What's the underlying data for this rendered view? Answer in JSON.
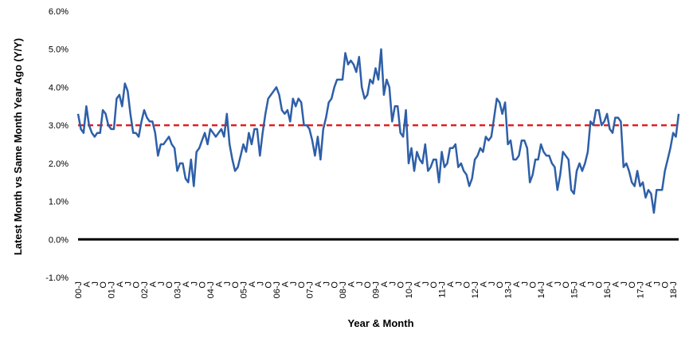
{
  "chart_data": {
    "type": "line",
    "xlabel": "Year & Month",
    "ylabel": "Latest Month vs Same Month Year Ago (Y/Y)",
    "ylim": [
      -1.0,
      6.0
    ],
    "y_ticks": [
      "-1.0%",
      "0.0%",
      "1.0%",
      "2.0%",
      "3.0%",
      "4.0%",
      "5.0%",
      "6.0%"
    ],
    "grid": false,
    "x_start_label": "2000-01",
    "x_end_label": "2018-01",
    "x_tick_labels": [
      "00-J",
      "A",
      "J",
      "O",
      "01-J",
      "A",
      "J",
      "O",
      "02-J",
      "A",
      "J",
      "O",
      "03-J",
      "A",
      "J",
      "O",
      "04-J",
      "A",
      "J",
      "O",
      "05-J",
      "A",
      "J",
      "O",
      "06-J",
      "A",
      "J",
      "O",
      "07-J",
      "A",
      "J",
      "O",
      "08-J",
      "A",
      "J",
      "O",
      "09-J",
      "A",
      "J",
      "O",
      "10-J",
      "A",
      "J",
      "O",
      "11-J",
      "A",
      "J",
      "O",
      "12-J",
      "A",
      "J",
      "O",
      "13-J",
      "A",
      "J",
      "O",
      "14-J",
      "A",
      "J",
      "O",
      "15-J",
      "A",
      "J",
      "O",
      "16-J",
      "A",
      "J",
      "O",
      "17-J",
      "A",
      "J",
      "O",
      "18-J"
    ],
    "reference_lines": [
      {
        "value": 3.0,
        "style": "dashed",
        "color": "#e02020"
      },
      {
        "value": 0.0,
        "style": "solid",
        "color": "#000000"
      }
    ],
    "series": [
      {
        "color": "#2e5fa8",
        "values": [
          3.3,
          2.9,
          2.8,
          3.5,
          3.0,
          2.8,
          2.7,
          2.8,
          2.8,
          3.4,
          3.3,
          3.0,
          2.9,
          2.9,
          3.7,
          3.8,
          3.5,
          4.1,
          3.9,
          3.3,
          2.8,
          2.8,
          2.7,
          3.1,
          3.4,
          3.2,
          3.1,
          3.1,
          2.8,
          2.2,
          2.5,
          2.5,
          2.6,
          2.7,
          2.5,
          2.4,
          1.8,
          2.0,
          2.0,
          1.6,
          1.5,
          2.1,
          1.4,
          2.3,
          2.4,
          2.6,
          2.8,
          2.5,
          2.9,
          2.8,
          2.7,
          2.8,
          2.9,
          2.7,
          3.3,
          2.5,
          2.1,
          1.8,
          1.9,
          2.2,
          2.5,
          2.3,
          2.8,
          2.5,
          2.9,
          2.9,
          2.2,
          2.8,
          3.3,
          3.7,
          3.8,
          3.9,
          4.0,
          3.8,
          3.4,
          3.3,
          3.4,
          3.1,
          3.7,
          3.5,
          3.7,
          3.6,
          3.0,
          3.0,
          2.9,
          2.6,
          2.2,
          2.7,
          2.1,
          2.9,
          3.2,
          3.6,
          3.7,
          4.0,
          4.2,
          4.2,
          4.2,
          4.9,
          4.6,
          4.7,
          4.6,
          4.4,
          4.8,
          4.0,
          3.7,
          3.8,
          4.2,
          4.1,
          4.5,
          4.2,
          5.0,
          3.8,
          4.2,
          4.0,
          3.1,
          3.5,
          3.5,
          2.8,
          2.7,
          3.4,
          2.0,
          2.4,
          1.8,
          2.3,
          2.1,
          2.0,
          2.5,
          1.8,
          1.9,
          2.1,
          2.1,
          1.5,
          2.3,
          1.9,
          2.0,
          2.4,
          2.4,
          2.5,
          1.9,
          2.0,
          1.8,
          1.7,
          1.4,
          1.6,
          2.1,
          2.2,
          2.4,
          2.3,
          2.7,
          2.6,
          2.7,
          3.2,
          3.7,
          3.6,
          3.3,
          3.6,
          2.5,
          2.6,
          2.1,
          2.1,
          2.2,
          2.6,
          2.6,
          2.4,
          1.5,
          1.7,
          2.1,
          2.1,
          2.5,
          2.3,
          2.2,
          2.2,
          2.0,
          1.9,
          1.3,
          1.7,
          2.3,
          2.2,
          2.1,
          1.3,
          1.2,
          1.8,
          2.0,
          1.8,
          2.0,
          2.3,
          3.1,
          3.0,
          3.4,
          3.4,
          3.0,
          3.1,
          3.3,
          2.9,
          2.8,
          3.2,
          3.2,
          3.1,
          1.9,
          2.0,
          1.8,
          1.5,
          1.4,
          1.8,
          1.4,
          1.5,
          1.1,
          1.3,
          1.2,
          0.7,
          1.3,
          1.3,
          1.3,
          1.8,
          2.1,
          2.4,
          2.8,
          2.7,
          3.3
        ]
      }
    ]
  }
}
